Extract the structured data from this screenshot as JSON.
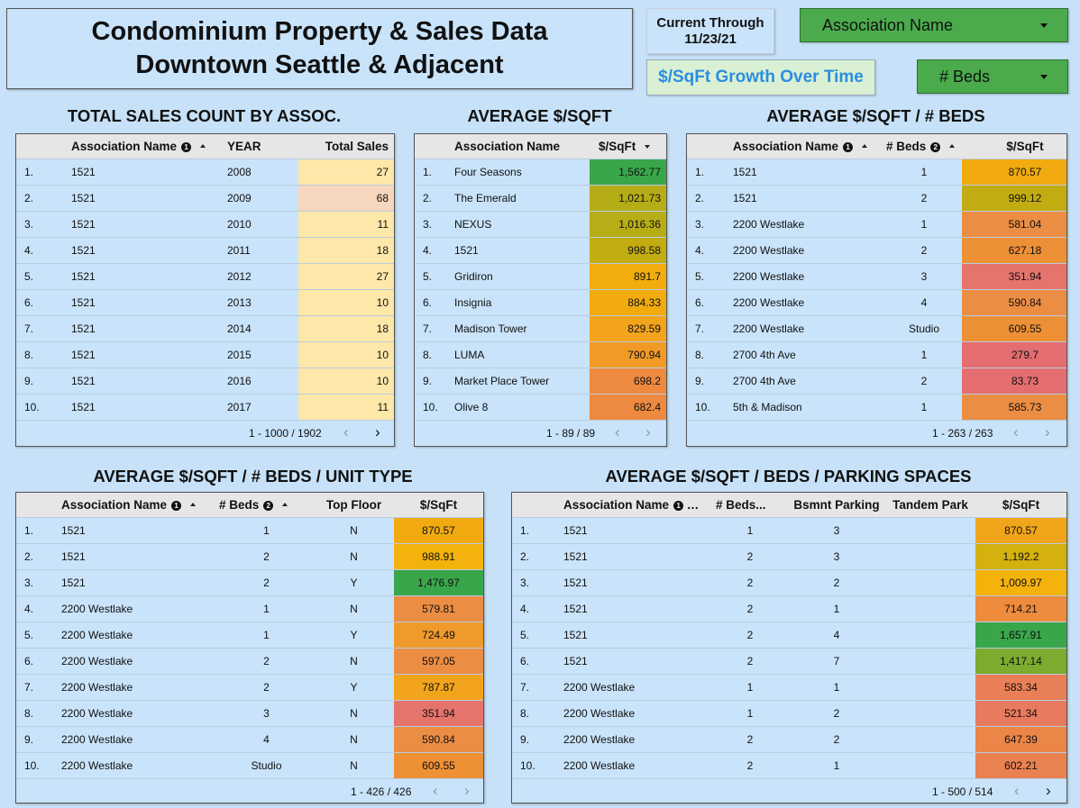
{
  "header": {
    "title_line1": "Condominium Property & Sales Data",
    "title_line2": "Downtown Seattle & Adjacent",
    "current_label": "Current Through",
    "current_date": "11/23/21",
    "growth_button": "$/SqFt Growth Over Time",
    "assoc_filter": "Association Name",
    "beds_filter": "# Beds"
  },
  "colors": {
    "background": "#c7e2f8",
    "panel": "#c9e3fa",
    "filter_green": "#4bab4c",
    "button_green": "#d9f0d4",
    "link_blue": "#2b8de0"
  },
  "sales_count": {
    "title": "TOTAL SALES COUNT BY ASSOC.",
    "headers": [
      "Association Name",
      "YEAR",
      "Total Sales"
    ],
    "rows": [
      [
        "1.",
        "1521",
        "2008",
        "27",
        "#fde7a9"
      ],
      [
        "2.",
        "1521",
        "2009",
        "68",
        "#f6d6bd"
      ],
      [
        "3.",
        "1521",
        "2010",
        "11",
        "#fde7a9"
      ],
      [
        "4.",
        "1521",
        "2011",
        "18",
        "#fde7a9"
      ],
      [
        "5.",
        "1521",
        "2012",
        "27",
        "#fde7a9"
      ],
      [
        "6.",
        "1521",
        "2013",
        "10",
        "#fde7a9"
      ],
      [
        "7.",
        "1521",
        "2014",
        "18",
        "#fde7a9"
      ],
      [
        "8.",
        "1521",
        "2015",
        "10",
        "#fde7a9"
      ],
      [
        "9.",
        "1521",
        "2016",
        "10",
        "#fde7a9"
      ],
      [
        "10.",
        "1521",
        "2017",
        "11",
        "#fde7a9"
      ]
    ],
    "pager": "1 - 1000 / 1902"
  },
  "avg_sqft": {
    "title": "AVERAGE $/SQFT",
    "headers": [
      "Association Name",
      "$/SqFt"
    ],
    "rows": [
      [
        "1.",
        "Four Seasons",
        "1,562.77",
        "#3aa64b"
      ],
      [
        "2.",
        "The Emerald",
        "1,021.73",
        "#b5ad16"
      ],
      [
        "3.",
        "NEXUS",
        "1,016.36",
        "#b7ad16"
      ],
      [
        "4.",
        "1521",
        "998.58",
        "#c2ac12"
      ],
      [
        "5.",
        "Gridiron",
        "891.7",
        "#f1ad0e"
      ],
      [
        "6.",
        "Insignia",
        "884.33",
        "#f1ab10"
      ],
      [
        "7.",
        "Madison Tower",
        "829.59",
        "#f3a41d"
      ],
      [
        "8.",
        "LUMA",
        "790.94",
        "#f19b26"
      ],
      [
        "9.",
        "Market Place Tower",
        "698.2",
        "#ed8a40"
      ],
      [
        "10.",
        "Olive 8",
        "682.4",
        "#ed8a40"
      ]
    ],
    "pager": "1 - 89 / 89"
  },
  "avg_sqft_beds": {
    "title": "AVERAGE $/SQFT / # BEDS",
    "headers": [
      "Association Name",
      "# Beds",
      "$/SqFt"
    ],
    "rows": [
      [
        "1.",
        "1521",
        "1",
        "870.57",
        "#f1ab10"
      ],
      [
        "2.",
        "1521",
        "2",
        "999.12",
        "#c2ac12"
      ],
      [
        "3.",
        "2200 Westlake",
        "1",
        "581.04",
        "#ec8d44"
      ],
      [
        "4.",
        "2200 Westlake",
        "2",
        "627.18",
        "#ee9036"
      ],
      [
        "5.",
        "2200 Westlake",
        "3",
        "351.94",
        "#e5746c"
      ],
      [
        "6.",
        "2200 Westlake",
        "4",
        "590.84",
        "#ec8d44"
      ],
      [
        "7.",
        "2200 Westlake",
        "Studio",
        "609.55",
        "#ee9036"
      ],
      [
        "8.",
        "2700 4th Ave",
        "1",
        "279.7",
        "#e46d70"
      ],
      [
        "9.",
        "2700 4th Ave",
        "2",
        "83.73",
        "#e46d70"
      ],
      [
        "10.",
        "5th & Madison",
        "1",
        "585.73",
        "#ec8d44"
      ]
    ],
    "pager": "1 - 263 / 263"
  },
  "unit_type": {
    "title": "AVERAGE $/SQFT / # BEDS / UNIT TYPE",
    "headers": [
      "Association Name",
      "# Beds",
      "Top Floor",
      "$/SqFt"
    ],
    "rows": [
      [
        "1.",
        "1521",
        "1",
        "N",
        "870.57",
        "#f1ab10"
      ],
      [
        "2.",
        "1521",
        "2",
        "N",
        "988.91",
        "#f3b20c"
      ],
      [
        "3.",
        "1521",
        "2",
        "Y",
        "1,476.97",
        "#3aa64b"
      ],
      [
        "4.",
        "2200 Westlake",
        "1",
        "N",
        "579.81",
        "#ec8d44"
      ],
      [
        "5.",
        "2200 Westlake",
        "1",
        "Y",
        "724.49",
        "#f09a2c"
      ],
      [
        "6.",
        "2200 Westlake",
        "2",
        "N",
        "597.05",
        "#ec8d44"
      ],
      [
        "7.",
        "2200 Westlake",
        "2",
        "Y",
        "787.87",
        "#f3a41d"
      ],
      [
        "8.",
        "2200 Westlake",
        "3",
        "N",
        "351.94",
        "#e5746c"
      ],
      [
        "9.",
        "2200 Westlake",
        "4",
        "N",
        "590.84",
        "#ec8d44"
      ],
      [
        "10.",
        "2200 Westlake",
        "Studio",
        "N",
        "609.55",
        "#ee9036"
      ]
    ],
    "pager": "1 - 426 / 426"
  },
  "parking": {
    "title": "AVERAGE $/SQFT / BEDS / PARKING SPACES",
    "headers": [
      "Association Name",
      "# Beds...",
      "Bsmnt Parking",
      "Tandem Park",
      "$/SqFt"
    ],
    "rows": [
      [
        "1.",
        "1521",
        "1",
        "3",
        "",
        "870.57",
        "#f1a51a"
      ],
      [
        "2.",
        "1521",
        "2",
        "3",
        "",
        "1,192.2",
        "#d4b10f"
      ],
      [
        "3.",
        "1521",
        "2",
        "2",
        "",
        "1,009.97",
        "#f3b20c"
      ],
      [
        "4.",
        "1521",
        "2",
        "1",
        "",
        "714.21",
        "#ee8b3d"
      ],
      [
        "5.",
        "1521",
        "2",
        "4",
        "",
        "1,657.91",
        "#3aa64b"
      ],
      [
        "6.",
        "1521",
        "2",
        "7",
        "",
        "1,417.14",
        "#7cab2f"
      ],
      [
        "7.",
        "2200 Westlake",
        "1",
        "1",
        "",
        "583.34",
        "#e97f57"
      ],
      [
        "8.",
        "2200 Westlake",
        "1",
        "2",
        "",
        "521.34",
        "#e77a5f"
      ],
      [
        "9.",
        "2200 Westlake",
        "2",
        "2",
        "",
        "647.39",
        "#ec8548"
      ],
      [
        "10.",
        "2200 Westlake",
        "2",
        "1",
        "",
        "602.21",
        "#ea8150"
      ]
    ],
    "pager": "1 - 500 / 514"
  }
}
